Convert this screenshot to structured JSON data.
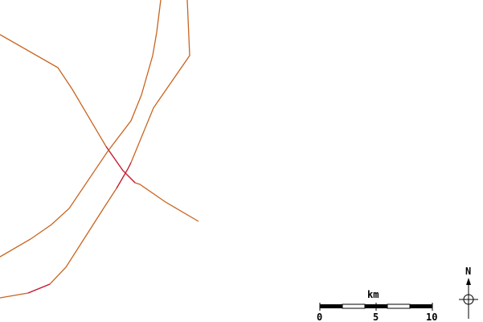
{
  "colors": {
    "background": "#ffffff",
    "route_orange": "#c8641e",
    "route_red": "#c81e3c",
    "ink": "#000000"
  },
  "scale_bar": {
    "unit": "km",
    "labels": [
      "0",
      "5",
      "10"
    ]
  },
  "north_arrow": {
    "label": "N",
    "icon": "compass-crosshair-icon"
  }
}
